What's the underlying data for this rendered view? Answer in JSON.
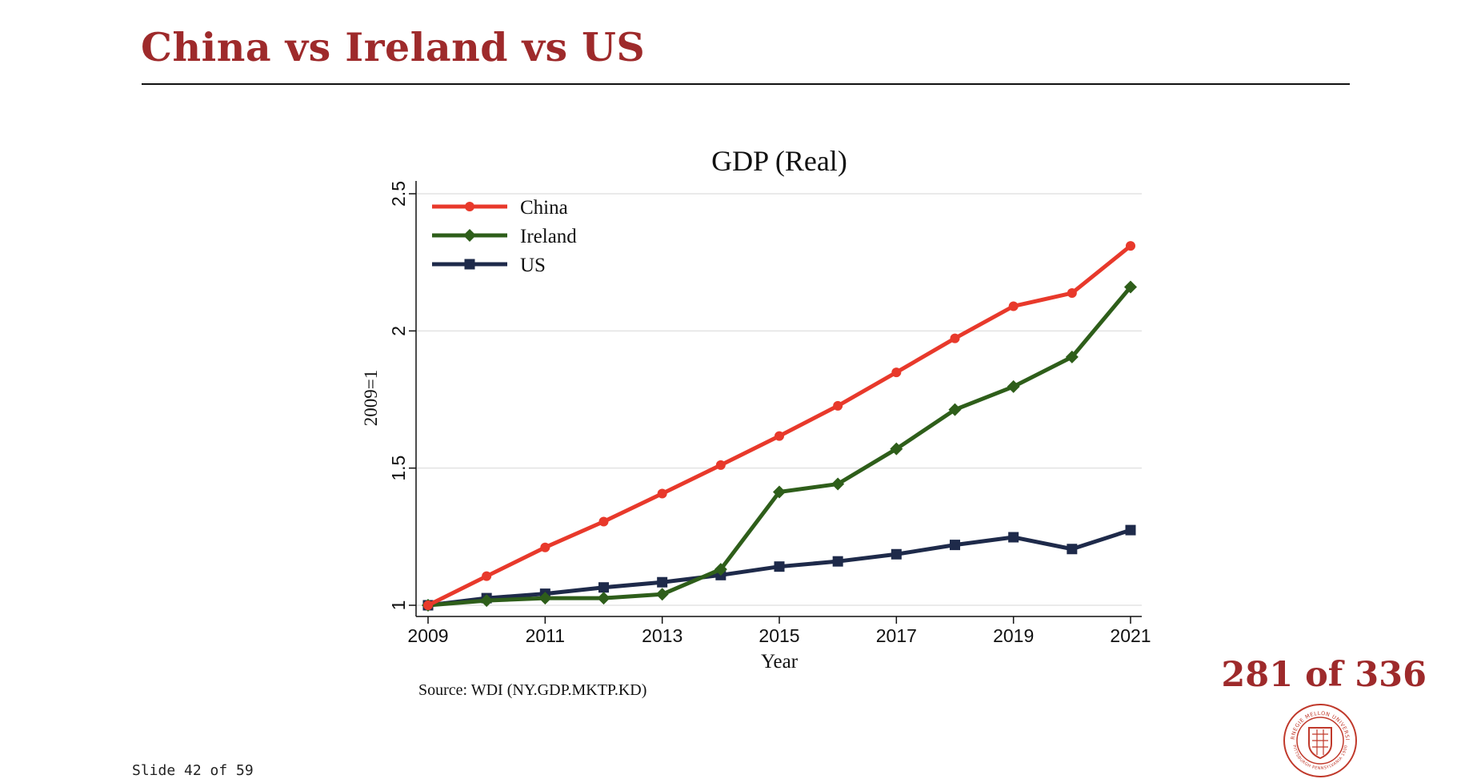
{
  "slide": {
    "title": "China vs Ireland vs US",
    "page_counter": "281 of 336",
    "slide_number": "Slide 42 of 59",
    "accent_color": "#9e2a2b",
    "seal": {
      "icon": "university-seal-icon",
      "text": "CARNEGIE MELLON UNIVERSITY · PITTSBURGH PENNSYLVANIA 1900"
    }
  },
  "chart_data": {
    "type": "line",
    "title": "GDP (Real)",
    "xlabel": "Year",
    "ylabel": "2009=1",
    "source": "Source: WDI (NY.GDP.MKTP.KD)",
    "x": [
      2009,
      2010,
      2011,
      2012,
      2013,
      2014,
      2015,
      2016,
      2017,
      2018,
      2019,
      2020,
      2021
    ],
    "xticks": [
      "2009",
      "2011",
      "2013",
      "2015",
      "2017",
      "2019",
      "2021"
    ],
    "yticks": [
      "1",
      "1.5",
      "2",
      "2.5"
    ],
    "xlim": [
      2009,
      2021
    ],
    "ylim": [
      1,
      2.5
    ],
    "grid": "horizontal",
    "legend_position": "top-left",
    "series": [
      {
        "name": "China",
        "color": "#e8392b",
        "marker": "circle",
        "values": [
          1.0,
          1.106,
          1.211,
          1.305,
          1.407,
          1.511,
          1.617,
          1.727,
          1.849,
          1.973,
          2.09,
          2.138,
          2.31
        ]
      },
      {
        "name": "Ireland",
        "color": "#2e5e1a",
        "marker": "diamond",
        "values": [
          1.0,
          1.017,
          1.026,
          1.026,
          1.04,
          1.131,
          1.413,
          1.442,
          1.57,
          1.713,
          1.797,
          1.905,
          2.16
        ]
      },
      {
        "name": "US",
        "color": "#1e2a4a",
        "marker": "square",
        "values": [
          1.0,
          1.026,
          1.042,
          1.065,
          1.084,
          1.11,
          1.141,
          1.16,
          1.186,
          1.22,
          1.248,
          1.205,
          1.274
        ]
      }
    ]
  }
}
